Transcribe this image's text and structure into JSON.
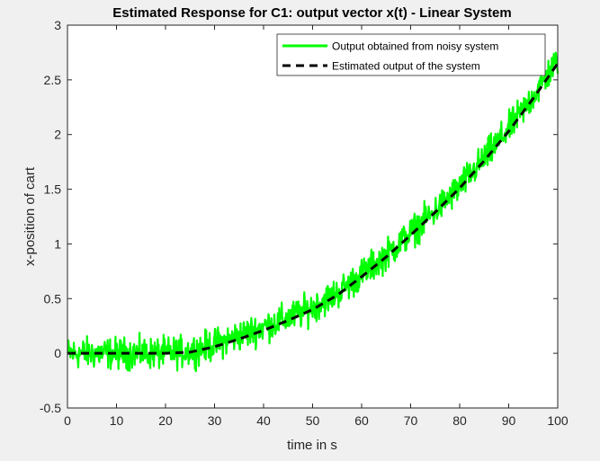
{
  "chart_data": {
    "type": "line",
    "title": "Estimated Response for C1: output vector x(t) - Linear System",
    "xlabel": "time in s",
    "ylabel": "x-position of cart",
    "xlim": [
      0,
      100
    ],
    "ylim": [
      -0.5,
      3
    ],
    "xticks": [
      "0",
      "10",
      "20",
      "30",
      "40",
      "50",
      "60",
      "70",
      "80",
      "90",
      "100"
    ],
    "yticks": [
      "-0.5",
      "0",
      "0.5",
      "1",
      "1.5",
      "2",
      "2.5",
      "3"
    ],
    "grid": false,
    "legend_position": "top-right",
    "colors": {
      "noisy": "#00ff00",
      "estimated": "#000000",
      "axes": "#262626",
      "background": "#f0f0f0",
      "plot": "#ffffff"
    },
    "series": [
      {
        "name": "Output obtained from noisy system",
        "style": "solid",
        "noise_amplitude": 0.1,
        "x": [
          0,
          5,
          10,
          15,
          20,
          25,
          30,
          35,
          40,
          45,
          50,
          55,
          60,
          65,
          70,
          75,
          80,
          85,
          90,
          95,
          100
        ],
        "y": [
          0,
          0,
          0,
          0,
          0,
          0.02,
          0.08,
          0.16,
          0.24,
          0.32,
          0.42,
          0.55,
          0.72,
          0.9,
          1.1,
          1.3,
          1.52,
          1.78,
          2.05,
          2.35,
          2.68
        ]
      },
      {
        "name": "Estimated output of the system",
        "style": "dashed",
        "x": [
          0,
          5,
          10,
          15,
          20,
          25,
          30,
          35,
          40,
          45,
          50,
          55,
          60,
          65,
          70,
          75,
          80,
          85,
          90,
          95,
          100
        ],
        "y": [
          0,
          0,
          0,
          0,
          0,
          0.01,
          0.06,
          0.13,
          0.21,
          0.3,
          0.4,
          0.53,
          0.7,
          0.88,
          1.08,
          1.29,
          1.51,
          1.76,
          2.03,
          2.33,
          2.65
        ]
      }
    ]
  }
}
